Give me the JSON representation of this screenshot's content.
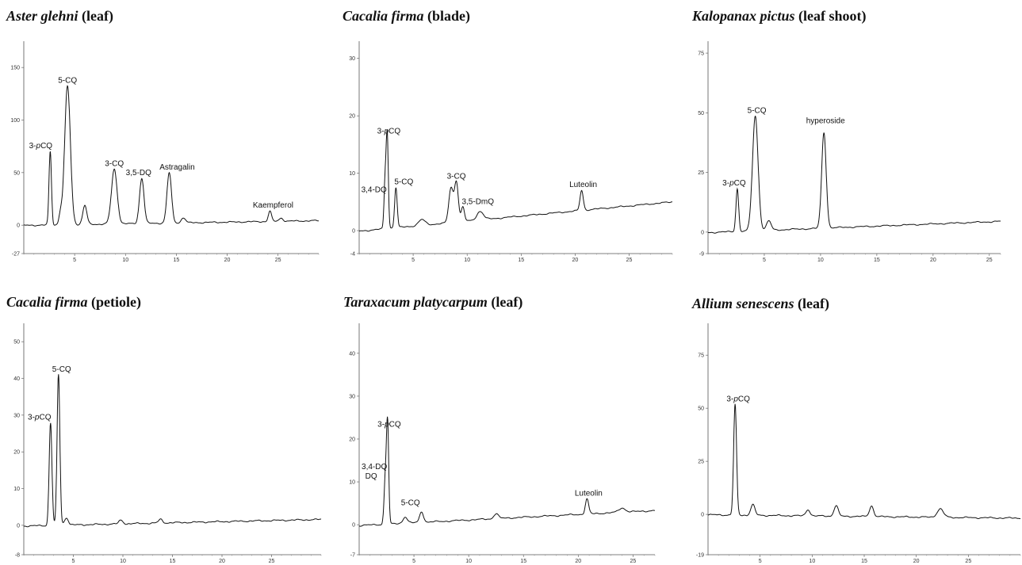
{
  "chart_data": [
    {
      "type": "line",
      "title_species": "Aster glehni",
      "title_part": "(leaf)",
      "xlim": [
        0,
        29
      ],
      "ylim": [
        -27,
        175
      ],
      "xticks": [
        5,
        10,
        15,
        20,
        25
      ],
      "yticks": [
        -27,
        0,
        50,
        100,
        150
      ],
      "peaks": [
        {
          "x": 2.6,
          "y": 70,
          "w": 0.12,
          "label": "3-pCQ"
        },
        {
          "x": 3.6,
          "y": 10,
          "w": 0.15,
          "label": ""
        },
        {
          "x": 4.3,
          "y": 132,
          "w": 0.28,
          "label": "5-CQ"
        },
        {
          "x": 6.0,
          "y": 18,
          "w": 0.2,
          "label": ""
        },
        {
          "x": 8.9,
          "y": 52,
          "w": 0.28,
          "label": "3-CQ"
        },
        {
          "x": 11.6,
          "y": 43,
          "w": 0.22,
          "label": "3,5-DQ"
        },
        {
          "x": 14.3,
          "y": 48,
          "w": 0.22,
          "label": "Astragalin"
        },
        {
          "x": 15.7,
          "y": 5,
          "w": 0.2,
          "label": ""
        },
        {
          "x": 24.2,
          "y": 10,
          "w": 0.15,
          "label": "Kaempferol"
        },
        {
          "x": 25.3,
          "y": 3,
          "w": 0.2,
          "label": ""
        }
      ]
    },
    {
      "type": "line",
      "title_species": "Cacalia firma",
      "title_part": "(blade)",
      "xlim": [
        0,
        29
      ],
      "ylim": [
        -4,
        33
      ],
      "xticks": [
        5,
        10,
        15,
        20,
        25
      ],
      "yticks": [
        -4,
        0,
        10,
        20,
        30
      ],
      "peaks": [
        {
          "x": 2.4,
          "y": 8,
          "w": 0.1,
          "label": "3,4-DQ"
        },
        {
          "x": 2.6,
          "y": 16,
          "w": 0.1,
          "label": "3-pCQ"
        },
        {
          "x": 3.4,
          "y": 7,
          "w": 0.12,
          "label": "5-CQ"
        },
        {
          "x": 5.8,
          "y": 1,
          "w": 0.3,
          "label": ""
        },
        {
          "x": 8.5,
          "y": 6,
          "w": 0.2,
          "label": ""
        },
        {
          "x": 9.0,
          "y": 7,
          "w": 0.18,
          "label": "3-CQ"
        },
        {
          "x": 9.6,
          "y": 2.5,
          "w": 0.15,
          "label": "3,5-DmQ"
        },
        {
          "x": 11.2,
          "y": 1.5,
          "w": 0.3,
          "label": ""
        },
        {
          "x": 20.6,
          "y": 3.5,
          "w": 0.15,
          "label": "Luteolin"
        }
      ]
    },
    {
      "type": "line",
      "title_species": "Kalopanax pictus",
      "title_part": "(leaf shoot)",
      "xlim": [
        0,
        26
      ],
      "ylim": [
        -9,
        80
      ],
      "xticks": [
        5,
        10,
        15,
        20,
        25
      ],
      "yticks": [
        -9,
        0,
        25,
        50,
        75
      ],
      "peaks": [
        {
          "x": 2.6,
          "y": 18,
          "w": 0.12,
          "label": "3-pCQ"
        },
        {
          "x": 4.2,
          "y": 48,
          "w": 0.25,
          "label": "5-CQ"
        },
        {
          "x": 5.4,
          "y": 4,
          "w": 0.2,
          "label": ""
        },
        {
          "x": 10.3,
          "y": 40,
          "w": 0.2,
          "label": "hyperoside"
        }
      ]
    },
    {
      "type": "line",
      "title_species": "Cacalia firma",
      "title_part": "(petiole)",
      "xlim": [
        0,
        30
      ],
      "ylim": [
        -8,
        55
      ],
      "xticks": [
        5,
        10,
        15,
        20,
        25
      ],
      "yticks": [
        -8,
        0,
        10,
        20,
        30,
        40,
        50
      ],
      "peaks": [
        {
          "x": 2.7,
          "y": 28,
          "w": 0.14,
          "label": "3-pCQ"
        },
        {
          "x": 3.5,
          "y": 41,
          "w": 0.14,
          "label": "5-CQ"
        },
        {
          "x": 4.3,
          "y": 2,
          "w": 0.2,
          "label": ""
        },
        {
          "x": 9.8,
          "y": 1,
          "w": 0.2,
          "label": ""
        },
        {
          "x": 13.8,
          "y": 1,
          "w": 0.2,
          "label": ""
        }
      ]
    },
    {
      "type": "line",
      "title_species": "Taraxacum platycarpum",
      "title_part": "(leaf)",
      "xlim": [
        0,
        27
      ],
      "ylim": [
        -7,
        47
      ],
      "xticks": [
        5,
        10,
        15,
        20,
        25
      ],
      "yticks": [
        -7,
        0,
        10,
        20,
        30,
        40
      ],
      "peaks": [
        {
          "x": 2.4,
          "y": 11,
          "w": 0.12,
          "label": "3,4-DQ DQ"
        },
        {
          "x": 2.6,
          "y": 22,
          "w": 0.1,
          "label": "3-pCQ"
        },
        {
          "x": 4.2,
          "y": 1.5,
          "w": 0.2,
          "label": ""
        },
        {
          "x": 5.7,
          "y": 2.5,
          "w": 0.18,
          "label": "5-CQ"
        },
        {
          "x": 12.5,
          "y": 1.2,
          "w": 0.2,
          "label": ""
        },
        {
          "x": 20.8,
          "y": 3.5,
          "w": 0.15,
          "label": "Luteolin"
        },
        {
          "x": 24.0,
          "y": 1,
          "w": 0.3,
          "label": ""
        }
      ]
    },
    {
      "type": "line",
      "title_species": "Allium senescens",
      "title_part": "(leaf)",
      "xlim": [
        0,
        30
      ],
      "ylim": [
        -19,
        90
      ],
      "xticks": [
        5,
        10,
        15,
        20,
        25
      ],
      "yticks": [
        -19,
        0,
        25,
        50,
        75
      ],
      "peaks": [
        {
          "x": 2.6,
          "y": 52,
          "w": 0.14,
          "label": "3-pCQ"
        },
        {
          "x": 4.3,
          "y": 5,
          "w": 0.2,
          "label": ""
        },
        {
          "x": 9.6,
          "y": 3,
          "w": 0.2,
          "label": ""
        },
        {
          "x": 12.3,
          "y": 5,
          "w": 0.2,
          "label": ""
        },
        {
          "x": 15.7,
          "y": 5,
          "w": 0.2,
          "label": ""
        },
        {
          "x": 22.3,
          "y": 4,
          "w": 0.3,
          "label": ""
        }
      ]
    }
  ]
}
